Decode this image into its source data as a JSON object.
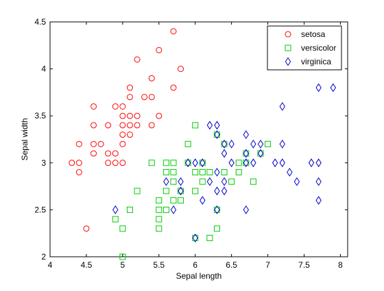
{
  "chart_data": {
    "type": "scatter",
    "xlabel": "Sepal length",
    "ylabel": "Sepal width",
    "xlim": [
      4,
      8.1
    ],
    "ylim": [
      2,
      4.5
    ],
    "xticks": [
      "4",
      "4.5",
      "5",
      "5.5",
      "6",
      "6.5",
      "7",
      "7.5",
      "8"
    ],
    "yticks": [
      "2",
      "2.5",
      "3",
      "3.5",
      "4",
      "4.5"
    ],
    "grid": false,
    "legend_position": "top-right",
    "series": [
      {
        "name": "setosa",
        "marker": "circle",
        "color": "#ff0000",
        "points": [
          [
            4.3,
            3.0
          ],
          [
            4.4,
            2.9
          ],
          [
            4.4,
            3.0
          ],
          [
            4.4,
            3.2
          ],
          [
            4.5,
            2.3
          ],
          [
            4.6,
            3.1
          ],
          [
            4.6,
            3.2
          ],
          [
            4.6,
            3.4
          ],
          [
            4.6,
            3.6
          ],
          [
            4.7,
            3.2
          ],
          [
            4.8,
            3.0
          ],
          [
            4.8,
            3.1
          ],
          [
            4.8,
            3.4
          ],
          [
            4.9,
            3.0
          ],
          [
            4.9,
            3.1
          ],
          [
            4.9,
            3.6
          ],
          [
            5.0,
            3.0
          ],
          [
            5.0,
            3.2
          ],
          [
            5.0,
            3.3
          ],
          [
            5.0,
            3.4
          ],
          [
            5.0,
            3.5
          ],
          [
            5.0,
            3.6
          ],
          [
            5.1,
            3.3
          ],
          [
            5.1,
            3.4
          ],
          [
            5.1,
            3.5
          ],
          [
            5.1,
            3.7
          ],
          [
            5.1,
            3.8
          ],
          [
            5.2,
            3.4
          ],
          [
            5.2,
            3.5
          ],
          [
            5.2,
            4.1
          ],
          [
            5.3,
            3.7
          ],
          [
            5.4,
            3.4
          ],
          [
            5.4,
            3.7
          ],
          [
            5.4,
            3.9
          ],
          [
            5.5,
            3.5
          ],
          [
            5.5,
            4.2
          ],
          [
            5.7,
            3.8
          ],
          [
            5.7,
            4.4
          ],
          [
            5.8,
            4.0
          ]
        ]
      },
      {
        "name": "versicolor",
        "marker": "square",
        "color": "#00cc00",
        "points": [
          [
            4.9,
            2.4
          ],
          [
            5.0,
            2.0
          ],
          [
            5.0,
            2.3
          ],
          [
            5.1,
            2.5
          ],
          [
            5.2,
            2.7
          ],
          [
            5.4,
            3.0
          ],
          [
            5.5,
            2.3
          ],
          [
            5.5,
            2.4
          ],
          [
            5.5,
            2.5
          ],
          [
            5.5,
            2.6
          ],
          [
            5.6,
            2.5
          ],
          [
            5.6,
            2.7
          ],
          [
            5.6,
            2.9
          ],
          [
            5.6,
            3.0
          ],
          [
            5.7,
            2.6
          ],
          [
            5.7,
            2.8
          ],
          [
            5.7,
            2.9
          ],
          [
            5.7,
            3.0
          ],
          [
            5.8,
            2.6
          ],
          [
            5.8,
            2.7
          ],
          [
            5.9,
            3.0
          ],
          [
            5.9,
            3.2
          ],
          [
            6.0,
            2.2
          ],
          [
            6.0,
            2.7
          ],
          [
            6.0,
            2.9
          ],
          [
            6.0,
            3.4
          ],
          [
            6.1,
            2.8
          ],
          [
            6.1,
            2.9
          ],
          [
            6.1,
            3.0
          ],
          [
            6.2,
            2.2
          ],
          [
            6.2,
            2.9
          ],
          [
            6.3,
            2.3
          ],
          [
            6.3,
            2.5
          ],
          [
            6.3,
            3.3
          ],
          [
            6.4,
            2.9
          ],
          [
            6.4,
            3.2
          ],
          [
            6.5,
            2.8
          ],
          [
            6.6,
            2.9
          ],
          [
            6.6,
            3.0
          ],
          [
            6.7,
            3.0
          ],
          [
            6.7,
            3.1
          ],
          [
            6.8,
            2.8
          ],
          [
            6.9,
            3.1
          ],
          [
            7.0,
            3.2
          ]
        ]
      },
      {
        "name": "virginica",
        "marker": "diamond",
        "color": "#0000cc",
        "points": [
          [
            4.9,
            2.5
          ],
          [
            5.6,
            2.8
          ],
          [
            5.7,
            2.5
          ],
          [
            5.8,
            2.7
          ],
          [
            5.8,
            2.8
          ],
          [
            5.9,
            3.0
          ],
          [
            6.0,
            2.2
          ],
          [
            6.0,
            3.0
          ],
          [
            6.1,
            2.6
          ],
          [
            6.1,
            3.0
          ],
          [
            6.2,
            2.8
          ],
          [
            6.2,
            3.4
          ],
          [
            6.3,
            2.5
          ],
          [
            6.3,
            2.7
          ],
          [
            6.3,
            2.9
          ],
          [
            6.3,
            3.3
          ],
          [
            6.3,
            3.4
          ],
          [
            6.4,
            2.7
          ],
          [
            6.4,
            2.8
          ],
          [
            6.4,
            3.1
          ],
          [
            6.4,
            3.2
          ],
          [
            6.5,
            3.0
          ],
          [
            6.5,
            3.2
          ],
          [
            6.7,
            2.5
          ],
          [
            6.7,
            3.0
          ],
          [
            6.7,
            3.1
          ],
          [
            6.7,
            3.3
          ],
          [
            6.8,
            3.0
          ],
          [
            6.8,
            3.2
          ],
          [
            6.9,
            3.1
          ],
          [
            6.9,
            3.2
          ],
          [
            7.1,
            3.0
          ],
          [
            7.2,
            3.0
          ],
          [
            7.2,
            3.2
          ],
          [
            7.2,
            3.6
          ],
          [
            7.3,
            2.9
          ],
          [
            7.4,
            2.8
          ],
          [
            7.6,
            3.0
          ],
          [
            7.7,
            2.6
          ],
          [
            7.7,
            2.8
          ],
          [
            7.7,
            3.0
          ],
          [
            7.7,
            3.8
          ],
          [
            7.9,
            3.8
          ]
        ]
      }
    ]
  }
}
